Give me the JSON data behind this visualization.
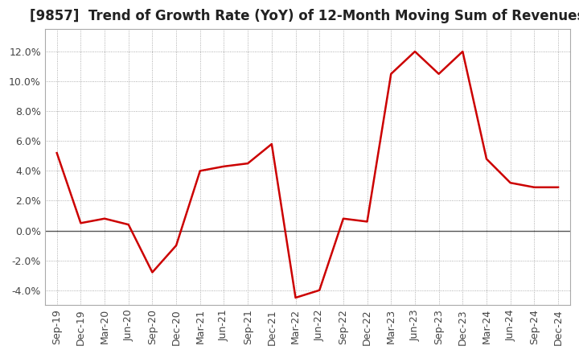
{
  "title": "[9857]  Trend of Growth Rate (YoY) of 12-Month Moving Sum of Revenues",
  "line_color": "#cc0000",
  "background_color": "#ffffff",
  "plot_background_color": "#ffffff",
  "grid_color": "#999999",
  "zero_line_color": "#555555",
  "x_labels": [
    "Sep-19",
    "Dec-19",
    "Mar-20",
    "Jun-20",
    "Sep-20",
    "Dec-20",
    "Mar-21",
    "Jun-21",
    "Sep-21",
    "Dec-21",
    "Mar-22",
    "Jun-22",
    "Sep-22",
    "Dec-22",
    "Mar-23",
    "Jun-23",
    "Sep-23",
    "Dec-23",
    "Mar-24",
    "Jun-24",
    "Sep-24",
    "Dec-24"
  ],
  "y_values": [
    5.2,
    0.5,
    0.8,
    0.4,
    -2.8,
    -1.0,
    4.0,
    4.3,
    4.5,
    5.8,
    -4.5,
    -4.0,
    0.8,
    0.6,
    10.5,
    12.0,
    10.5,
    12.0,
    4.8,
    3.2,
    2.9,
    2.9
  ],
  "ylim": [
    -5.0,
    13.5
  ],
  "yticks": [
    -4.0,
    -2.0,
    0.0,
    2.0,
    4.0,
    6.0,
    8.0,
    10.0,
    12.0
  ],
  "title_fontsize": 12,
  "tick_fontsize": 9,
  "line_width": 1.8
}
